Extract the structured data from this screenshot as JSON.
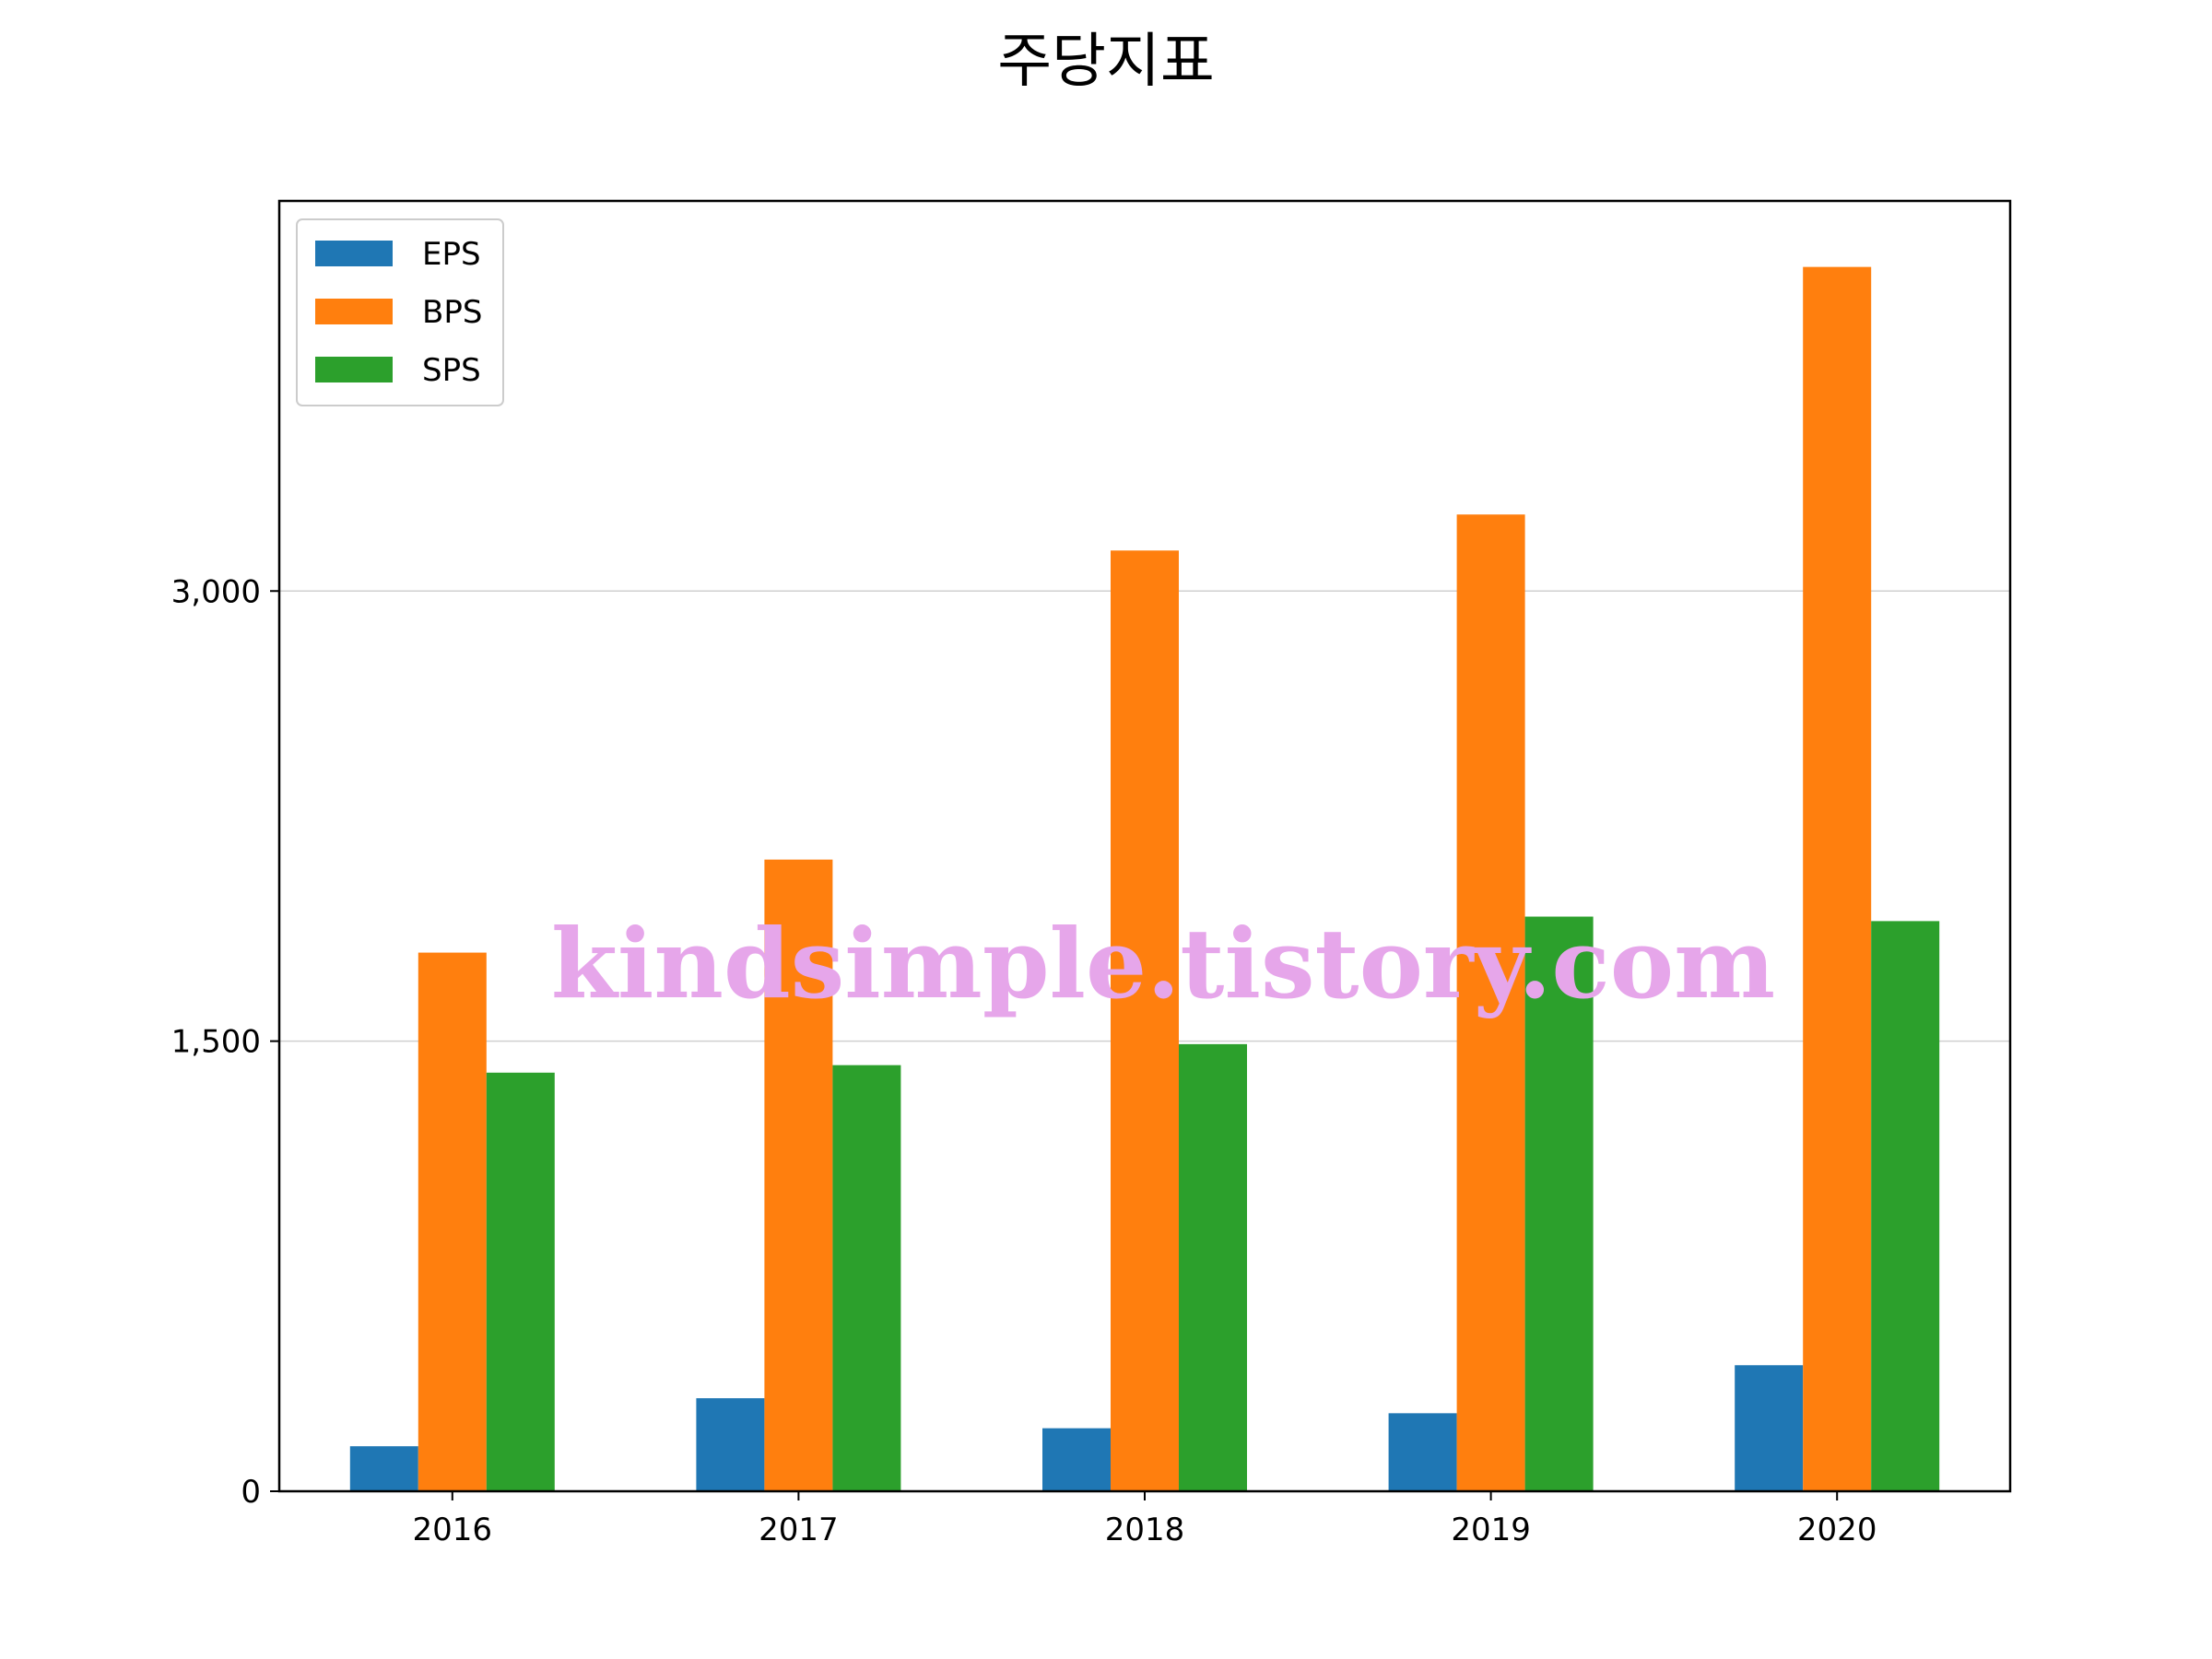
{
  "chart_data": {
    "type": "bar",
    "title": "주당지표",
    "xlabel": "",
    "ylabel": "",
    "categories": [
      "2016",
      "2017",
      "2018",
      "2019",
      "2020"
    ],
    "series": [
      {
        "name": "EPS",
        "color": "#1f77b4",
        "values": [
          150,
          310,
          210,
          260,
          420
        ]
      },
      {
        "name": "BPS",
        "color": "#ff7f0e",
        "values": [
          1795,
          2105,
          3135,
          3255,
          4080
        ]
      },
      {
        "name": "SPS",
        "color": "#2ca02c",
        "values": [
          1395,
          1420,
          1490,
          1915,
          1900
        ]
      }
    ],
    "ylim": [
      0,
      4300
    ],
    "yticks": [
      0,
      1500,
      3000
    ],
    "ytick_labels": [
      "0",
      "1,500",
      "3,000"
    ],
    "grid": "y",
    "legend_position": "upper-left"
  },
  "watermark": "kindsimple.tistory.com"
}
